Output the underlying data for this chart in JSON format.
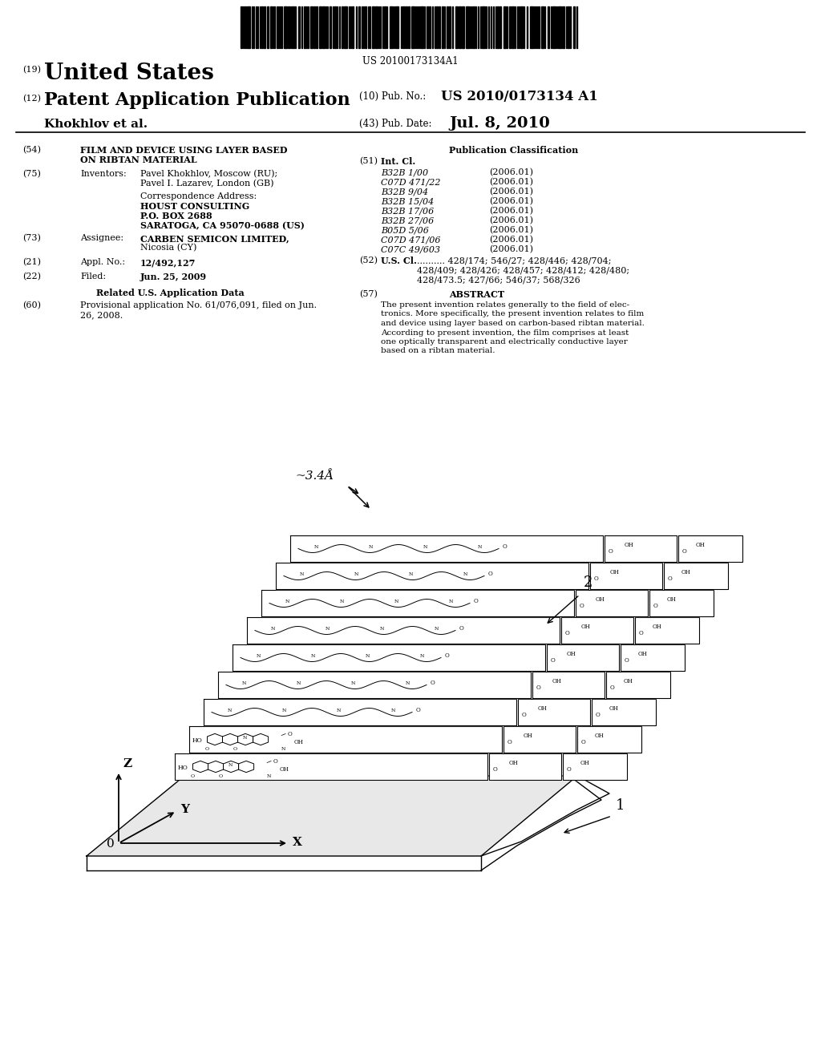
{
  "bg_color": "#ffffff",
  "barcode_text": "US 20100173134A1",
  "title_19": "(19)",
  "title_19_text": "United States",
  "title_12": "(12)",
  "title_12_text": "Patent Application Publication",
  "pub_no_label": "(10) Pub. No.:",
  "pub_no": "US 2010/0173134 A1",
  "inventors_label": "Khokhlov et al.",
  "pub_date_label": "(43) Pub. Date:",
  "pub_date": "Jul. 8, 2010",
  "field54_num": "(54)",
  "field54_title_line1": "FILM AND DEVICE USING LAYER BASED",
  "field54_title_line2": "ON RIBTAN MATERIAL",
  "field75_num": "(75)",
  "field75_label": "Inventors:",
  "field75_line1": "Pavel Khokhlov, Moscow (RU);",
  "field75_line2": "Pavel I. Lazarev, London (GB)",
  "corr_label": "Correspondence Address:",
  "corr_line1": "HOUST CONSULTING",
  "corr_line2": "P.O. BOX 2688",
  "corr_line3": "SARATOGA, CA 95070-0688 (US)",
  "field73_num": "(73)",
  "field73_label": "Assignee:",
  "field73_line1": "CARBEN SEMICON LIMITED,",
  "field73_line2": "Nicosia (CY)",
  "field21_num": "(21)",
  "field21_label": "Appl. No.:",
  "field21_text": "12/492,127",
  "field22_num": "(22)",
  "field22_label": "Filed:",
  "field22_text": "Jun. 25, 2009",
  "related_header": "Related U.S. Application Data",
  "field60_num": "(60)",
  "field60_line1": "Provisional application No. 61/076,091, filed on Jun.",
  "field60_line2": "26, 2008.",
  "pub_class_header": "Publication Classification",
  "field51_num": "(51)",
  "field51_label": "Int. Cl.",
  "ipc_classes": [
    [
      "B32B 1/00",
      "(2006.01)"
    ],
    [
      "C07D 471/22",
      "(2006.01)"
    ],
    [
      "B32B 9/04",
      "(2006.01)"
    ],
    [
      "B32B 15/04",
      "(2006.01)"
    ],
    [
      "B32B 17/06",
      "(2006.01)"
    ],
    [
      "B32B 27/06",
      "(2006.01)"
    ],
    [
      "B05D 5/06",
      "(2006.01)"
    ],
    [
      "C07D 471/06",
      "(2006.01)"
    ],
    [
      "C07C 49/603",
      "(2006.01)"
    ]
  ],
  "field52_num": "(52)",
  "field52_label": "U.S. Cl.",
  "field52_dots": "428/174",
  "field52_line1": "428/174; 546/27; 428/446; 428/704;",
  "field52_line2": "428/409; 428/426; 428/457; 428/412; 428/480;",
  "field52_line3": "428/473.5; 427/66; 546/37; 568/326",
  "field57_num": "(57)",
  "field57_label": "ABSTRACT",
  "abstract_lines": [
    "The present invention relates generally to the field of elec-",
    "tronics. More specifically, the present invention relates to film",
    "and device using layer based on carbon-based ribtan material.",
    "According to present invention, the film comprises at least",
    "one optically transparent and electrically conductive layer",
    "based on a ribtan material."
  ],
  "diagram_spacing_label": "~3.4Å",
  "diagram_label1": "1",
  "diagram_label2": "2",
  "diagram_axis_0": "0",
  "diagram_axis_x": "X",
  "diagram_axis_y": "Y",
  "diagram_axis_z": "Z"
}
